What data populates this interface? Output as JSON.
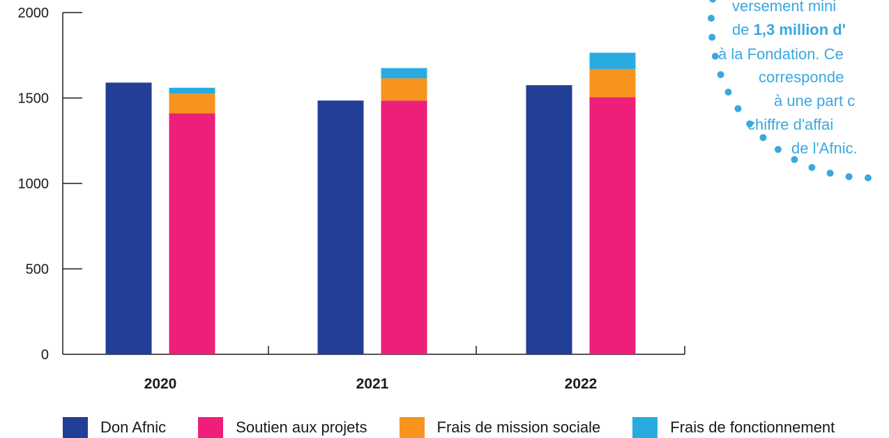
{
  "chart_data": {
    "type": "bar",
    "stacked_groups": true,
    "categories": [
      "2020",
      "2021",
      "2022"
    ],
    "ylim": [
      0,
      2000
    ],
    "yticks": [
      "0",
      "500",
      "1000",
      "1500",
      "2000"
    ],
    "yticks_values": [
      0,
      500,
      1000,
      1500,
      2000
    ],
    "title": "",
    "xlabel": "",
    "ylabel": "",
    "legend_position": "bottom",
    "series": [
      {
        "name": "Don Afnic",
        "stack": "don",
        "color": "#233e96",
        "values": [
          1590,
          1485,
          1575
        ]
      },
      {
        "name": "Soutien aux projets",
        "stack": "depenses",
        "color": "#ee1f78",
        "values": [
          1410,
          1485,
          1505
        ]
      },
      {
        "name": "Frais de mission sociale",
        "stack": "depenses",
        "color": "#f7941d",
        "values": [
          115,
          130,
          165
        ]
      },
      {
        "name": "Frais de fonctionnement",
        "stack": "depenses",
        "color": "#29abe2",
        "values": [
          35,
          60,
          95
        ]
      }
    ]
  },
  "note": {
    "color": "#3aa8e0",
    "lines": [
      [
        {
          "text": "versement mini",
          "bold": false
        }
      ],
      [
        {
          "text": "de ",
          "bold": false
        },
        {
          "text": "1,3 million d'",
          "bold": true
        }
      ],
      [
        {
          "text": "à la Fondation. Ce",
          "bold": false
        }
      ],
      [
        {
          "text": "corresponde",
          "bold": false
        }
      ],
      [
        {
          "text": "à une part c",
          "bold": false
        }
      ],
      [
        {
          "text": "chiffre d'affai",
          "bold": false
        }
      ],
      [
        {
          "text": "de l'Afnic.",
          "bold": false
        }
      ]
    ]
  }
}
